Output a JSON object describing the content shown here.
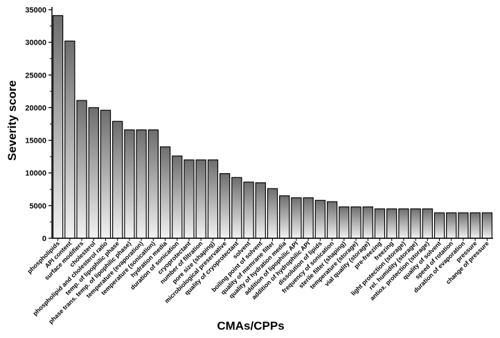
{
  "chart_data": {
    "type": "bar",
    "xlabel": "CMAs/CPPs",
    "ylabel": "Severity score",
    "ylim": [
      0,
      35000
    ],
    "yticks": [
      0,
      5000,
      10000,
      15000,
      20000,
      25000,
      30000,
      35000
    ],
    "grid": false,
    "categories": [
      "phospholipids",
      "API content",
      "surface modifiers",
      "cholesterol",
      "phospholipid and cholesterol ratio",
      "temp. of lipophilic phase",
      "phase trans. temp. of lipophilic phase)",
      "temperature (evaporation)",
      "temperature (sonication)",
      "hydration media",
      "duration of sonication",
      "cryoprotectant",
      "number of filtration",
      "pore size (shaping)",
      "microbiological preservative",
      "quality of cryoprotectant",
      "solvent",
      "boiling point of solvent",
      "quality of memrane filter",
      "quality of hydration media",
      "addition of lipophilic API",
      "addition of hydrophilic API",
      "dissolution of lipids",
      "frequency of sonication",
      "sterile filter (shaping)",
      "temperature (storage)",
      "vial quality (storage)",
      "pre-freezing",
      "freezing",
      "light protection (storage)",
      "rel. humidity (storage)",
      "antiox. protection (storage)",
      "quality of solvent",
      "speed of rotation",
      "duration of evaporation",
      "pressure",
      "change of pressure"
    ],
    "values": [
      34100,
      30200,
      21100,
      20000,
      19600,
      17900,
      16600,
      16600,
      16600,
      14000,
      12600,
      12000,
      12000,
      12000,
      9900,
      9300,
      8600,
      8500,
      7600,
      6500,
      6200,
      6200,
      5800,
      5600,
      4800,
      4800,
      4800,
      4500,
      4500,
      4500,
      4500,
      4500,
      3900,
      3900,
      3900,
      3900,
      3900
    ]
  }
}
